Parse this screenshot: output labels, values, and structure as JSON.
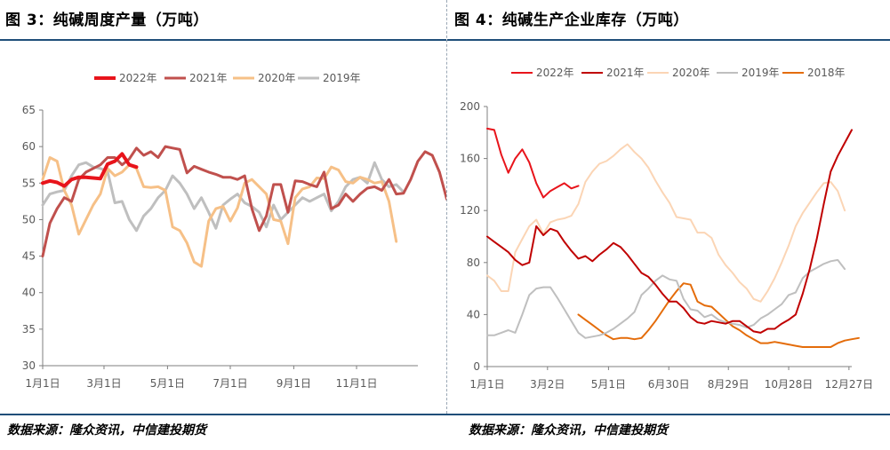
{
  "charts": [
    {
      "title": "图 3：纯碱周度产量（万吨）",
      "source": "数据来源：隆众资讯，中信建投期货",
      "chart_data": {
        "type": "line",
        "xlabel": "",
        "ylabel": "",
        "ylim": [
          30,
          65
        ],
        "yticks": [
          30,
          35,
          40,
          45,
          50,
          55,
          60,
          65
        ],
        "xticks": [
          {
            "week": 0,
            "label": "1月1日"
          },
          {
            "week": 8.5,
            "label": "3月1日"
          },
          {
            "week": 17.3,
            "label": "5月1日"
          },
          {
            "week": 26,
            "label": "7月1日"
          },
          {
            "week": 34.8,
            "label": "9月1日"
          },
          {
            "week": 43.5,
            "label": "11月1日"
          }
        ],
        "xmax": 52,
        "legend": "top",
        "series": [
          {
            "name": "2022年",
            "color": "#e8141b",
            "width": 4,
            "values": [
              55.0,
              55.3,
              55.1,
              54.6,
              55.5,
              55.8,
              55.8,
              55.7,
              55.6,
              57.6,
              58.0,
              59.0,
              57.5,
              57.2
            ]
          },
          {
            "name": "2021年",
            "color": "#c0504d",
            "width": 3,
            "values": [
              45.0,
              49.5,
              51.5,
              53.0,
              52.5,
              55.5,
              56.5,
              57.0,
              57.5,
              58.5,
              58.5,
              57.5,
              58.3,
              59.8,
              58.8,
              59.3,
              58.5,
              60.0,
              59.8,
              59.6,
              56.4,
              57.3,
              56.9,
              56.5,
              56.2,
              55.8,
              55.8,
              55.5,
              56.0,
              51.5,
              48.5,
              50.5,
              54.8,
              54.8,
              51.0,
              55.3,
              55.2,
              54.8,
              54.5,
              56.5,
              51.5,
              52.0,
              53.5,
              52.5,
              53.5,
              54.3,
              54.5,
              54.0,
              55.5,
              53.5,
              53.6,
              55.5,
              58.0,
              59.3,
              58.8,
              56.5,
              52.8
            ]
          },
          {
            "name": "2020年",
            "color": "#f6c087",
            "width": 3,
            "values": [
              55.5,
              58.5,
              58.0,
              54.0,
              52.0,
              48.0,
              50.0,
              52.0,
              53.5,
              57.0,
              56.0,
              56.5,
              57.5,
              57.0,
              54.5,
              54.4,
              54.5,
              54.0,
              49.0,
              48.5,
              46.8,
              44.2,
              43.6,
              49.8,
              51.5,
              51.8,
              49.8,
              51.6,
              55.0,
              55.5,
              54.5,
              53.5,
              50.0,
              49.8,
              46.7,
              53.0,
              54.2,
              54.5,
              55.7,
              55.6,
              57.2,
              56.8,
              55.2,
              55.0,
              55.8,
              55.5,
              55.0,
              55.2,
              52.5,
              47.0
            ]
          },
          {
            "name": "2019年",
            "color": "#bfbfbf",
            "width": 3,
            "values": [
              52.0,
              53.5,
              53.8,
              54.0,
              56.0,
              57.5,
              57.8,
              57.2,
              57.0,
              56.6,
              52.3,
              52.5,
              50.0,
              48.5,
              50.5,
              51.5,
              53.0,
              54.0,
              56.0,
              55.0,
              53.5,
              51.5,
              53.0,
              51.0,
              48.8,
              52.0,
              52.8,
              53.5,
              52.3,
              51.8,
              51.0,
              49.0,
              52.0,
              50.0,
              51.0,
              52.0,
              53.0,
              52.5,
              53.0,
              53.5,
              51.2,
              52.5,
              54.5,
              55.5,
              55.8,
              55.0,
              57.8,
              55.5,
              54.5,
              54.8,
              53.8
            ]
          }
        ]
      }
    },
    {
      "title": "图 4：纯碱生产企业库存（万吨）",
      "source": "数据来源：隆众资讯，中信建投期货",
      "chart_data": {
        "type": "line",
        "xlabel": "",
        "ylabel": "",
        "ylim": [
          0,
          200
        ],
        "yticks": [
          0,
          40,
          80,
          120,
          160,
          200
        ],
        "xticks": [
          {
            "week": 0,
            "label": "1月1日"
          },
          {
            "week": 8.6,
            "label": "3月2日"
          },
          {
            "week": 17.3,
            "label": "5月1日"
          },
          {
            "week": 25.9,
            "label": "6月30日"
          },
          {
            "week": 34.4,
            "label": "8月29日"
          },
          {
            "week": 43.0,
            "label": "10月28日"
          },
          {
            "week": 51.6,
            "label": "12月27日"
          }
        ],
        "xmax": 52,
        "legend": "top",
        "series": [
          {
            "name": "2022年",
            "color": "#e8141b",
            "width": 2,
            "values": [
              183,
              182,
              163,
              149,
              160,
              167,
              157,
              141,
              130,
              135,
              138,
              141,
              137,
              139
            ]
          },
          {
            "name": "2021年",
            "color": "#c00000",
            "width": 2,
            "values": [
              100,
              96,
              92,
              88,
              82,
              78,
              80,
              108,
              101,
              106,
              104,
              96,
              89,
              83,
              85,
              81,
              86,
              90,
              95,
              92,
              86,
              79,
              72,
              69,
              63,
              56,
              50,
              50,
              45,
              38,
              34,
              33,
              35,
              34,
              33,
              35,
              35,
              31,
              27,
              26,
              29,
              29,
              33,
              36,
              40,
              56,
              75,
              98,
              125,
              150,
              162,
              172,
              182
            ]
          },
          {
            "name": "2020年",
            "color": "#fbd5b5",
            "width": 2,
            "values": [
              70,
              66,
              58,
              58,
              88,
              98,
              108,
              113,
              102,
              111,
              113,
              114,
              116,
              125,
              142,
              150,
              156,
              158,
              162,
              167,
              171,
              165,
              160,
              153,
              143,
              134,
              126,
              115,
              114,
              113,
              103,
              103,
              99,
              86,
              78,
              72,
              65,
              60,
              52,
              50,
              58,
              68,
              80,
              93,
              108,
              118,
              126,
              134,
              141,
              142,
              135,
              120
            ]
          },
          {
            "name": "2019年",
            "color": "#bfbfbf",
            "width": 2,
            "values": [
              24,
              24,
              26,
              28,
              26,
              40,
              55,
              60,
              61,
              61,
              53,
              44,
              35,
              26,
              22,
              23,
              24,
              26,
              29,
              33,
              37,
              42,
              55,
              60,
              66,
              70,
              67,
              66,
              52,
              44,
              43,
              38,
              40,
              36,
              34,
              33,
              32,
              30,
              32,
              37,
              40,
              44,
              48,
              55,
              57,
              68,
              73,
              76,
              79,
              81,
              82,
              75
            ]
          },
          {
            "name": "2018年",
            "color": "#e46c0a",
            "width": 2,
            "values": [
              null,
              null,
              null,
              null,
              null,
              null,
              null,
              null,
              null,
              null,
              null,
              null,
              null,
              40,
              36,
              32,
              28,
              24,
              21,
              22,
              22,
              21,
              22,
              28,
              35,
              43,
              51,
              58,
              64,
              63,
              50,
              47,
              46,
              41,
              36,
              31,
              28,
              24,
              21,
              18,
              18,
              19,
              18,
              17,
              16,
              15,
              15,
              15,
              15,
              15,
              18,
              20,
              21,
              22
            ]
          }
        ]
      }
    }
  ]
}
